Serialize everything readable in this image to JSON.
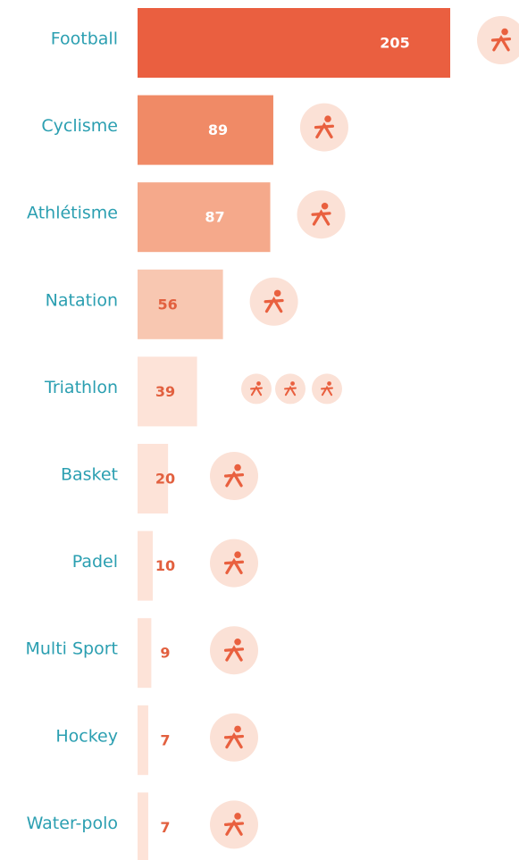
{
  "chart_data": {
    "type": "bar",
    "orientation": "horizontal",
    "categories": [
      "Football",
      "Cyclisme",
      "Athlétisme",
      "Natation",
      "Triathlon",
      "Basket",
      "Padel",
      "Multi Sport",
      "Hockey",
      "Water-polo"
    ],
    "values": [
      205,
      89,
      87,
      56,
      39,
      20,
      10,
      9,
      7,
      7
    ],
    "colors": [
      "#ea5f40",
      "#f08a66",
      "#f5a98b",
      "#f8c7b1",
      "#fde3d8",
      "#fde3d8",
      "#fde3d8",
      "#fde3d8",
      "#fde3d8",
      "#fde3d8"
    ]
  }
}
